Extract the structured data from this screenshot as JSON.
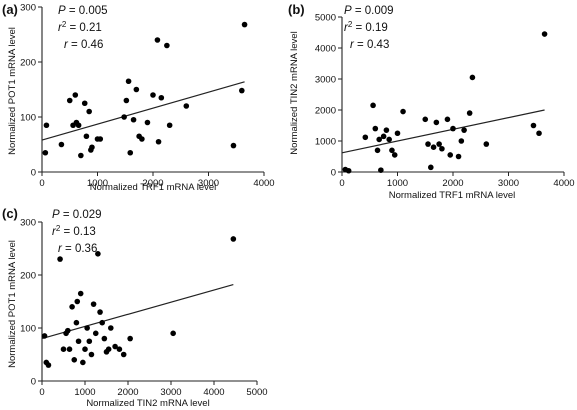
{
  "chart_data": [
    {
      "type": "scatter",
      "panel_label": "(a)",
      "stats": {
        "p_label": "P",
        "p_value": "= 0.005",
        "r2_label": "r",
        "r2_value": "= 0.21",
        "r_label": "r",
        "r_value": "= 0.46"
      },
      "xlabel": "Normalized TRF1 mRNA level",
      "ylabel": "Normalized POT1 mRNA level",
      "xlim": [
        0,
        4000
      ],
      "ylim": [
        0,
        300
      ],
      "xticks": [
        0,
        1000,
        2000,
        3000,
        4000
      ],
      "yticks": [
        0,
        100,
        200,
        300
      ],
      "regression": {
        "x": [
          0,
          3650
        ],
        "y": [
          58,
          164
        ]
      },
      "x": [
        60,
        80,
        350,
        500,
        560,
        600,
        620,
        660,
        700,
        770,
        800,
        850,
        880,
        900,
        1000,
        1050,
        1480,
        1520,
        1560,
        1590,
        1650,
        1700,
        1750,
        1800,
        1900,
        2000,
        2080,
        2100,
        2150,
        2250,
        2300,
        2600,
        3450,
        3600,
        3650
      ],
      "y": [
        35,
        85,
        50,
        130,
        85,
        140,
        90,
        85,
        30,
        125,
        65,
        110,
        40,
        45,
        60,
        60,
        100,
        130,
        165,
        35,
        95,
        150,
        65,
        60,
        90,
        140,
        240,
        55,
        135,
        230,
        85,
        120,
        48,
        148,
        268
      ]
    },
    {
      "type": "scatter",
      "panel_label": "(b)",
      "stats": {
        "p_label": "P",
        "p_value": "= 0.009",
        "r2_label": "r",
        "r2_value": "= 0.19",
        "r_label": "r",
        "r_value": "= 0.43"
      },
      "xlabel": "Normalized TRF1 mRNA level",
      "ylabel": "Normalized TIN2 mRNA level",
      "xlim": [
        0,
        4000
      ],
      "ylim": [
        0,
        5000
      ],
      "xticks": [
        0,
        1000,
        2000,
        3000,
        4000
      ],
      "yticks": [
        0,
        1000,
        2000,
        3000,
        4000,
        5000
      ],
      "regression": {
        "x": [
          0,
          3650
        ],
        "y": [
          620,
          2000
        ]
      },
      "x": [
        60,
        120,
        420,
        560,
        600,
        640,
        670,
        700,
        750,
        800,
        850,
        900,
        950,
        1000,
        1100,
        1500,
        1550,
        1600,
        1650,
        1700,
        1750,
        1800,
        1900,
        1950,
        2000,
        2100,
        2150,
        2200,
        2300,
        2350,
        2600,
        3450,
        3550,
        3650
      ],
      "y": [
        80,
        40,
        1120,
        2150,
        1400,
        700,
        1050,
        60,
        1150,
        1350,
        1050,
        700,
        550,
        1250,
        1950,
        1700,
        900,
        150,
        800,
        1600,
        900,
        750,
        1700,
        550,
        1400,
        500,
        1000,
        1350,
        1900,
        3050,
        900,
        1500,
        1250,
        4450
      ]
    },
    {
      "type": "scatter",
      "panel_label": "(c)",
      "stats": {
        "p_label": "P",
        "p_value": "= 0.029",
        "r2_label": "r",
        "r2_value": "= 0.13",
        "r_label": "r",
        "r_value": "= 0.36"
      },
      "xlabel": "Normalized TIN2 mRNA level",
      "ylabel": "Normalized POT1 mRNA level",
      "xlim": [
        0,
        5000
      ],
      "ylim": [
        0,
        300
      ],
      "xticks": [
        0,
        1000,
        2000,
        3000,
        4000,
        5000
      ],
      "yticks": [
        0,
        100,
        200,
        300
      ],
      "regression": {
        "x": [
          0,
          4450
        ],
        "y": [
          80,
          182
        ]
      },
      "x": [
        60,
        100,
        150,
        420,
        500,
        560,
        600,
        640,
        700,
        750,
        800,
        820,
        850,
        900,
        950,
        1000,
        1050,
        1100,
        1150,
        1200,
        1250,
        1300,
        1350,
        1400,
        1450,
        1500,
        1550,
        1600,
        1700,
        1800,
        1900,
        2050,
        3050,
        4450
      ],
      "y": [
        85,
        35,
        30,
        230,
        60,
        90,
        95,
        60,
        140,
        40,
        110,
        150,
        75,
        165,
        35,
        60,
        100,
        75,
        50,
        145,
        90,
        240,
        130,
        110,
        80,
        55,
        60,
        100,
        65,
        60,
        50,
        80,
        90,
        268
      ]
    }
  ]
}
